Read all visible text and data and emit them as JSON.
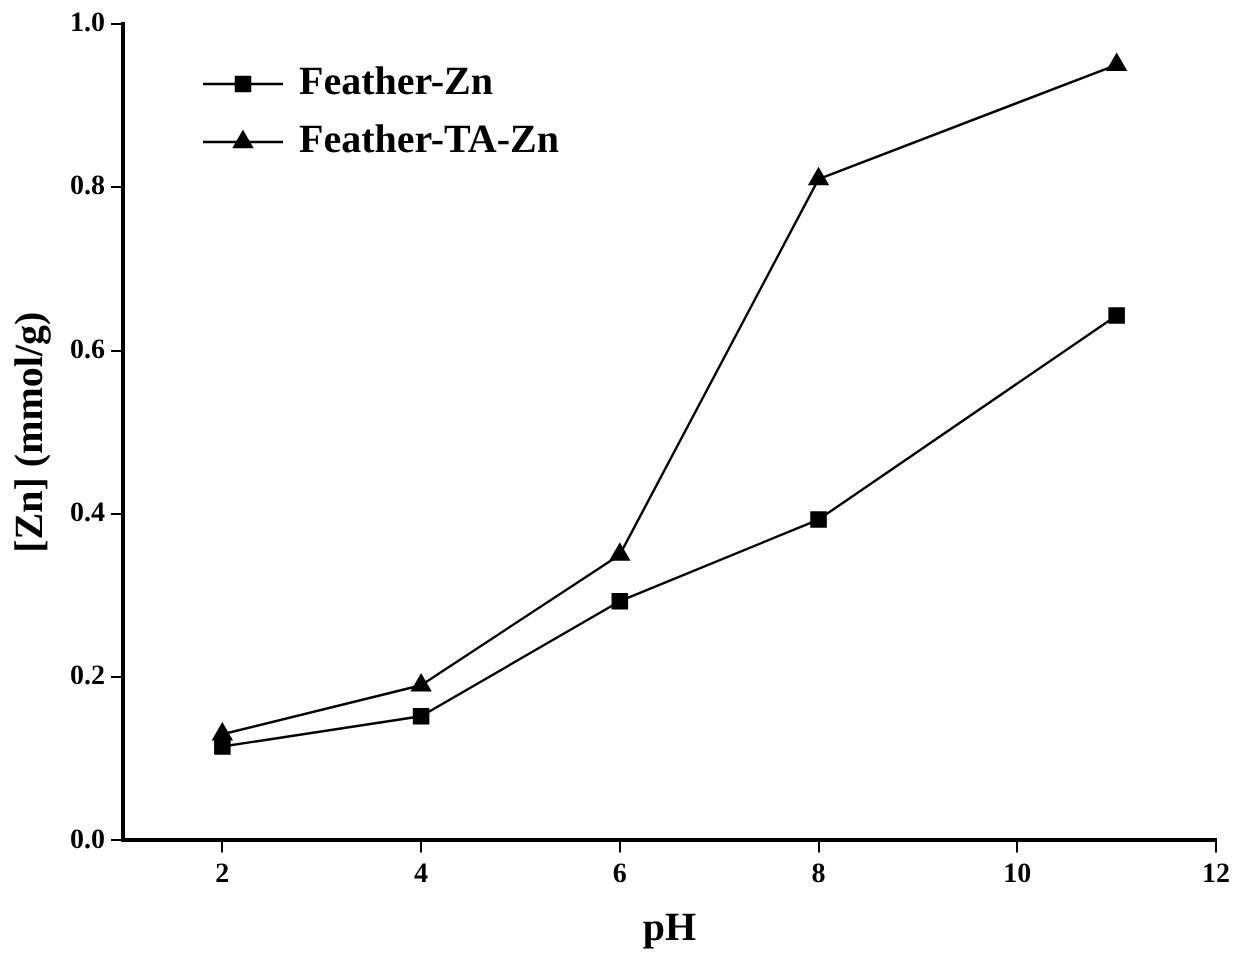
{
  "chart_data": {
    "type": "line",
    "xlabel": "pH",
    "ylabel": "[Zn] (mmol/g)",
    "x": [
      2,
      4,
      6,
      8,
      11
    ],
    "series": [
      {
        "name": "Feather-Zn",
        "color": "#000000",
        "marker": "square",
        "values": [
          0.115,
          0.152,
          0.293,
          0.393,
          0.643
        ]
      },
      {
        "name": "Feather-TA-Zn",
        "color": "#000000",
        "marker": "triangle",
        "values": [
          0.13,
          0.19,
          0.35,
          0.81,
          0.95
        ]
      }
    ],
    "xlim": [
      1,
      12
    ],
    "xticks": [
      2,
      4,
      6,
      8,
      10,
      12
    ],
    "ylim": [
      0,
      1
    ],
    "yticks": [
      {
        "value": 0,
        "label": "0.0"
      },
      {
        "value": 0.2,
        "label": "0.2"
      },
      {
        "value": 0.4,
        "label": "0.4"
      },
      {
        "value": 0.6,
        "label": "0.6"
      },
      {
        "value": 0.8,
        "label": "0.8"
      },
      {
        "value": 1,
        "label": "1.0"
      }
    ],
    "grid": false,
    "legend": "top left",
    "line_style": "solid"
  }
}
